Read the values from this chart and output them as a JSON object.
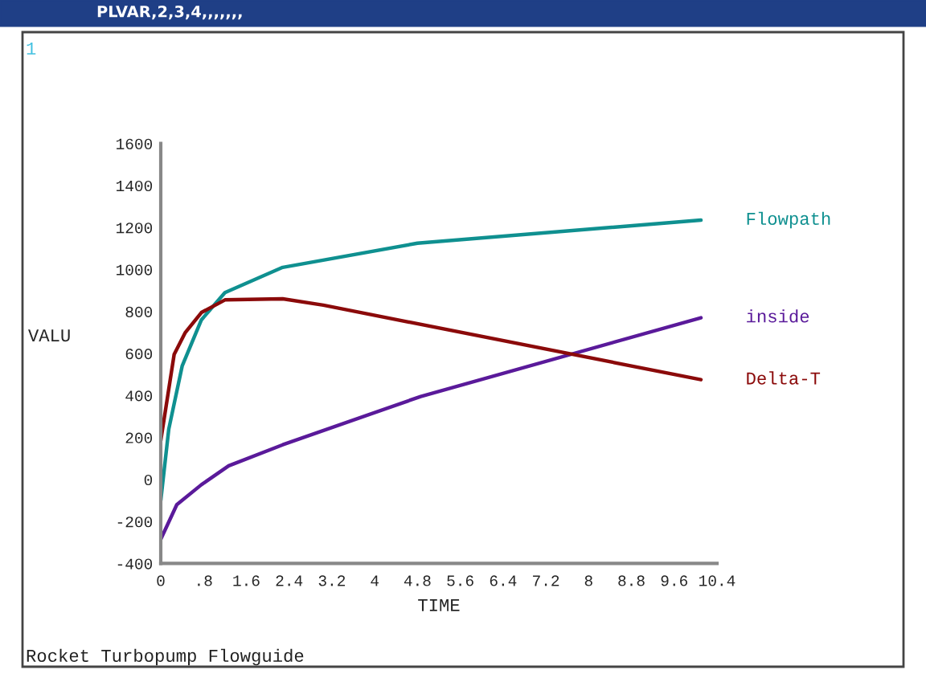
{
  "chart_data": {
    "type": "line",
    "title": "PLVAR,2,3,4,,,,,,,",
    "xlabel": "TIME",
    "ylabel": "VALU",
    "annotations": [
      "1",
      "Rocket Turbopump Flowguide"
    ],
    "series": [
      {
        "name": "Flowpath",
        "color": "#0f9090",
        "x": [
          0,
          0.15,
          0.4,
          0.76,
          1.2,
          2.28,
          4.8,
          10.1
        ],
        "values": [
          -100,
          240,
          540,
          760,
          890,
          1010,
          1125,
          1235
        ]
      },
      {
        "name": "inside",
        "color": "#5a1a9a",
        "x": [
          0,
          0.3,
          0.76,
          1.27,
          2.28,
          4.86,
          10.1
        ],
        "values": [
          -285,
          -120,
          -25,
          65,
          165,
          395,
          770
        ]
      },
      {
        "name": "Delta-T",
        "color": "#8b0a0a",
        "x": [
          0,
          0.25,
          0.46,
          0.76,
          1.2,
          2.28,
          3.04,
          10.1
        ],
        "values": [
          185,
          595,
          700,
          795,
          855,
          860,
          830,
          475
        ]
      }
    ],
    "xlim": [
      0,
      10.4
    ],
    "ylim": [
      -400,
      1600
    ],
    "xticks": [
      0,
      {
        "value": 0.8,
        "label": ".8"
      },
      1.6,
      2.4,
      3.2,
      4,
      4.8,
      5.6,
      6.4,
      7.2,
      8,
      8.8,
      9.6,
      10.4
    ],
    "yticks": [
      -400,
      -200,
      0,
      200,
      400,
      600,
      800,
      1000,
      1200,
      1400,
      1600
    ],
    "grid": false,
    "line_style": "solid",
    "marker": "none"
  }
}
